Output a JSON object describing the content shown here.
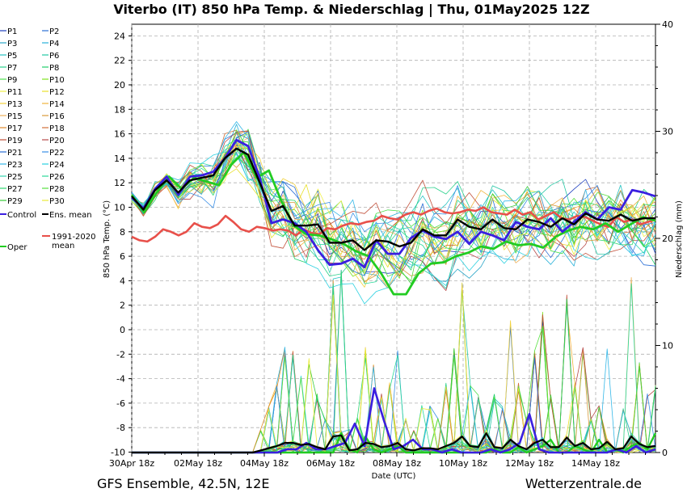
{
  "header": {
    "title": "Viterbo  (IT)  850 hPa Temp. & Niederschlag | Thu, 01May2025 12Z"
  },
  "footer": {
    "left": "GFS Ensemble, 42.5N, 12E",
    "right": "Wetterzentrale.de"
  },
  "chart_data": {
    "type": "line",
    "title": "Viterbo  (IT)  850 hPa Temp. & Niederschlag | Thu, 01May2025 12Z",
    "xlabel": "Date (UTC)",
    "ylabel_left": "850 hPa Temp. (°C)",
    "ylabel_right": "Niederschlag (mm)",
    "x_ticks": [
      "30Apr 18z",
      "02May 18z",
      "04May 18z",
      "06May 18z",
      "08May 18z",
      "10May 18z",
      "12May 18z",
      "14May 18z"
    ],
    "ylim_left": [
      -10,
      25
    ],
    "y_ticks_left": [
      24,
      22,
      20,
      18,
      16,
      14,
      12,
      10,
      8,
      6,
      4,
      2,
      0,
      -2,
      -4,
      -6,
      -8,
      -10
    ],
    "ylim_right": [
      0,
      40
    ],
    "y_ticks_right": [
      40,
      30,
      20,
      10,
      0
    ],
    "grid": true,
    "legend_placement": "left",
    "legend": [
      {
        "name": "P1",
        "color": "#1f3fbf"
      },
      {
        "name": "P2",
        "color": "#2a6fd6"
      },
      {
        "name": "P3",
        "color": "#2ba6c8"
      },
      {
        "name": "P4",
        "color": "#27b0d8"
      },
      {
        "name": "P5",
        "color": "#24c2c2"
      },
      {
        "name": "P6",
        "color": "#22c7a4"
      },
      {
        "name": "P7",
        "color": "#2bd18c"
      },
      {
        "name": "P8",
        "color": "#1fcf6a"
      },
      {
        "name": "P9",
        "color": "#4fe04f"
      },
      {
        "name": "P10",
        "color": "#7fe21f"
      },
      {
        "name": "P11",
        "color": "#f0f04a"
      },
      {
        "name": "P12",
        "color": "#e8e02a"
      },
      {
        "name": "P13",
        "color": "#f2d23c"
      },
      {
        "name": "P14",
        "color": "#f0b43c"
      },
      {
        "name": "P15",
        "color": "#eeb05a"
      },
      {
        "name": "P16",
        "color": "#d89a3a"
      },
      {
        "name": "P17",
        "color": "#e08a2c"
      },
      {
        "name": "P18",
        "color": "#d2703a"
      },
      {
        "name": "P19",
        "color": "#c2503a"
      },
      {
        "name": "P20",
        "color": "#b84a4a"
      },
      {
        "name": "P21",
        "color": "#2a6fd6"
      },
      {
        "name": "P22",
        "color": "#3a8fe6"
      },
      {
        "name": "P23",
        "color": "#35b8e8"
      },
      {
        "name": "P24",
        "color": "#2ad0e0"
      },
      {
        "name": "P25",
        "color": "#34d6b0"
      },
      {
        "name": "P26",
        "color": "#2ad89a"
      },
      {
        "name": "P27",
        "color": "#30d870"
      },
      {
        "name": "P28",
        "color": "#58e040"
      },
      {
        "name": "P29",
        "color": "#3acb3a"
      },
      {
        "name": "P30",
        "color": "#eaea3a"
      },
      {
        "name": "Control",
        "color": "#3a1fe0"
      },
      {
        "name": "Ens. mean",
        "color": "#000000"
      },
      {
        "name": "1991-2020 mean",
        "color": "#e8504a"
      },
      {
        "name": "Oper",
        "color": "#22cc22"
      }
    ],
    "series": [
      {
        "name": "Control",
        "values": [
          10.8,
          9.9,
          11.5,
          12.5,
          11.0,
          12.5,
          12.6,
          12.9,
          14.0,
          15.5,
          15.0,
          12.4,
          8.7,
          9.0,
          8.7,
          8.0,
          6.5,
          5.3,
          5.4,
          5.8,
          5.1,
          7.3,
          6.2,
          6.2,
          7.5,
          8.1,
          7.6,
          7.4,
          8.0,
          7.0,
          8.0,
          7.7,
          7.3,
          8.8,
          8.4,
          8.2,
          9.1,
          8.0,
          8.8,
          9.6,
          9.0,
          10.0,
          9.8,
          11.4,
          11.2,
          10.9
        ]
      },
      {
        "name": "Ens. mean",
        "values": [
          10.9,
          9.8,
          11.4,
          12.2,
          11.2,
          12.2,
          12.4,
          12.6,
          14.0,
          14.8,
          14.3,
          12.0,
          9.7,
          10.1,
          8.5,
          8.5,
          8.6,
          7.1,
          7.1,
          7.3,
          6.5,
          7.3,
          7.2,
          6.8,
          7.1,
          8.2,
          7.7,
          7.7,
          9.0,
          8.4,
          8.2,
          9.0,
          8.3,
          8.2,
          9.0,
          8.8,
          8.4,
          9.1,
          8.6,
          9.5,
          9.0,
          8.9,
          9.4,
          8.9,
          9.1,
          9.1
        ]
      },
      {
        "name": "1991-2020 mean",
        "values": [
          7.6,
          7.3,
          7.2,
          7.6,
          8.2,
          8.0,
          7.7,
          8.0,
          8.7,
          8.4,
          8.3,
          8.6,
          9.3,
          8.8,
          8.2,
          8.0,
          8.4,
          8.3,
          8.1,
          8.2,
          8.1,
          7.7,
          8.2,
          7.9,
          7.8,
          8.3,
          8.2,
          8.5,
          8.7,
          8.6,
          8.8,
          8.9,
          9.3,
          9.1,
          9.0,
          9.4,
          9.6,
          9.4,
          9.7,
          9.9,
          9.6,
          9.5,
          9.6,
          9.8,
          9.7,
          10.0,
          9.6,
          9.5,
          9.4,
          9.8,
          9.4,
          9.6,
          9.0,
          9.3,
          9.6,
          9.1,
          9.0,
          9.3,
          9.2,
          8.9,
          8.6,
          8.4,
          9.2,
          8.8,
          9.0,
          8.6,
          8.8,
          9.0
        ]
      },
      {
        "name": "Oper",
        "values": [
          11.0,
          9.6,
          11.2,
          12.5,
          11.5,
          12.4,
          12.1,
          11.8,
          13.5,
          14.5,
          12.4,
          13.0,
          10.5,
          8.5,
          7.8,
          7.7,
          7.4,
          7.0,
          6.4,
          6.0,
          4.6,
          2.9,
          2.9,
          4.6,
          5.4,
          5.5,
          6.0,
          6.3,
          6.8,
          6.6,
          7.2,
          6.9,
          7.0,
          6.7,
          7.6,
          8.1,
          8.4,
          8.2,
          8.7,
          8.0,
          8.6,
          9.2,
          8.9
        ]
      },
      {
        "name": "Control precipitation",
        "values": [
          0,
          0,
          0,
          0,
          0,
          0,
          0,
          0,
          0,
          0,
          0,
          0,
          0,
          0,
          0,
          0,
          0.3,
          0.3,
          0.9,
          0.3,
          0.3,
          0.6,
          0.9,
          2.7,
          0.6,
          6.0,
          3.0,
          0.3,
          0.6,
          1.2,
          0.3,
          0.3,
          0,
          0.3,
          0,
          0,
          0,
          0.3,
          0,
          0.3,
          0.9,
          3.6,
          0.3,
          0,
          0,
          0,
          0,
          0,
          0,
          0,
          0.3,
          0,
          0.6,
          0,
          0.3
        ]
      },
      {
        "name": "Ens. mean precipitation",
        "values": [
          0,
          0,
          0,
          0,
          0,
          0,
          0,
          0,
          0,
          0,
          0,
          0,
          0,
          0,
          0,
          0,
          0.2,
          0.4,
          0.6,
          0.9,
          0.9,
          0.7,
          0.8,
          0.5,
          0.3,
          1.5,
          1.6,
          0.2,
          0.3,
          0.9,
          0.8,
          0.5,
          0.6,
          0.9,
          0.3,
          0.2,
          0.4,
          0.4,
          0.3,
          0.6,
          0.9,
          1.5,
          0.6,
          0.5,
          1.8,
          0.5,
          0.4,
          1.2,
          0.6,
          0.3,
          0.9,
          1.2,
          0.5,
          0.5,
          1.4,
          0.6,
          0.9,
          0.3,
          0.4,
          1.0,
          0.3,
          0.4,
          1.5,
          0.8,
          0.5,
          0.6
        ]
      },
      {
        "name": "Oper precipitation",
        "values": [
          0,
          0,
          0,
          0,
          0,
          0,
          0,
          0,
          0,
          0,
          0,
          0,
          0,
          0,
          0,
          0,
          0,
          0,
          0,
          0,
          0,
          0,
          0,
          0,
          0,
          0,
          1.8,
          0.3,
          0,
          1.5,
          0.3,
          0,
          0.3,
          0.6,
          0,
          0,
          0,
          0,
          0,
          0,
          0,
          0,
          0,
          0,
          0,
          0.3,
          0,
          0,
          0.5,
          0,
          0.3,
          0.6,
          1.2,
          0,
          0,
          0.6,
          0.3,
          0,
          1.2,
          0,
          0.3,
          0,
          0.6,
          0.9,
          0.3,
          1.8
        ]
      }
    ]
  }
}
